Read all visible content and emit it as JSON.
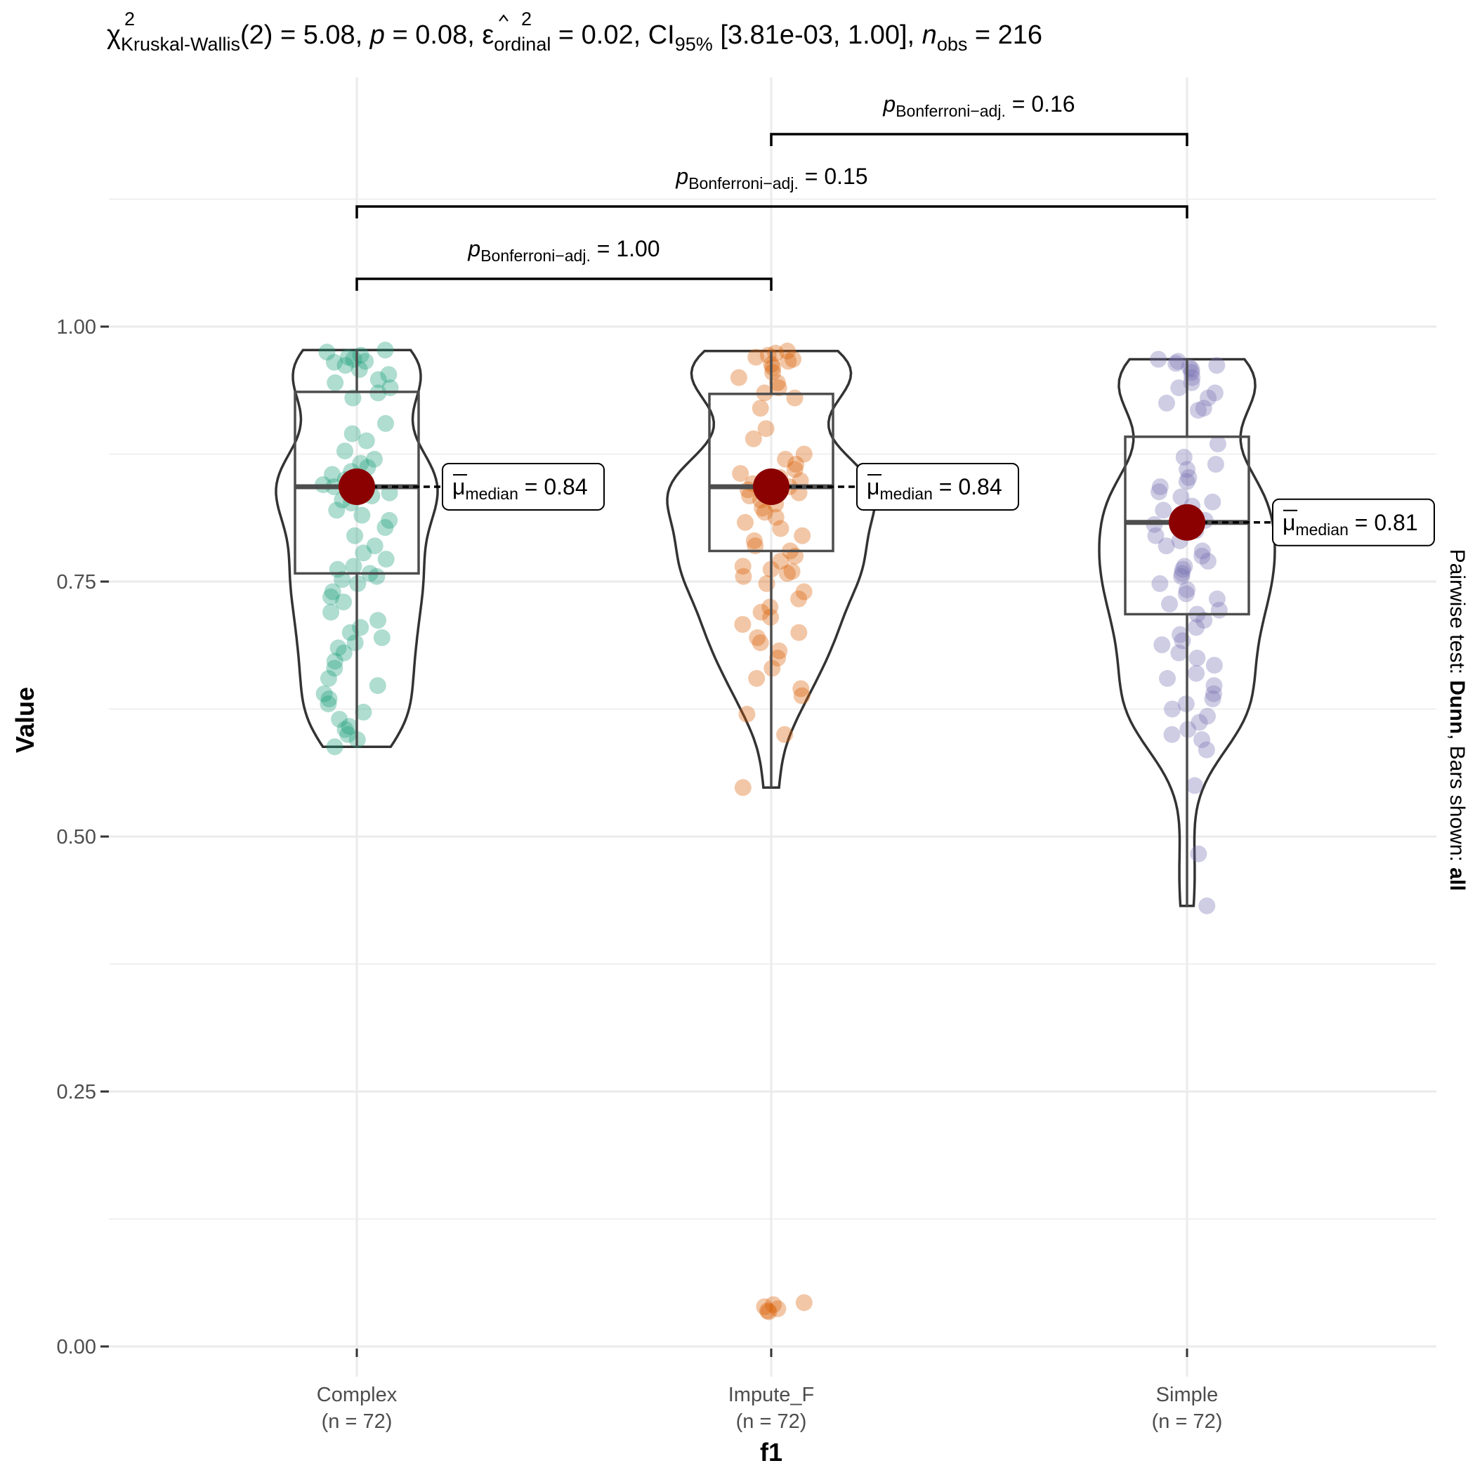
{
  "chart_data": {
    "type": "violin-box-scatter",
    "title": {
      "chi_symbol": "χ",
      "chi_sup": "2",
      "chi_sub": "Kruskal-Wallis",
      "df_text": "(2) = 5.08, ",
      "p_symbol": "p",
      "p_text": " = 0.08, ",
      "eps_symbol": "ε",
      "eps_sup": "2",
      "eps_sub": "ordinal",
      "eps_text": " = 0.02, CI",
      "ci_sub": "95%",
      "ci_text": " [3.81e-03, 1.00], ",
      "n_symbol": "n",
      "n_sub": "obs",
      "n_text": " = 216"
    },
    "xlabel": "f1",
    "ylabel": "Value",
    "ylim": [
      0,
      1.0
    ],
    "yticks": [
      "0.00",
      "0.25",
      "0.50",
      "0.75",
      "1.00"
    ],
    "grid": true,
    "side_note": {
      "prefix": "Pairwise test: ",
      "test": "Dunn",
      "middle": ", Bars shown: ",
      "bars": "all"
    },
    "groups": [
      {
        "name": "Complex",
        "n_label": "(n = 72)",
        "color": "#1b9e77",
        "median": 0.843,
        "median_label": "0.84",
        "q1": 0.758,
        "q3": 0.936,
        "whisker_low": 0.588,
        "whisker_high": 0.977,
        "points": [
          0.977,
          0.975,
          0.972,
          0.97,
          0.968,
          0.966,
          0.965,
          0.962,
          0.958,
          0.953,
          0.948,
          0.945,
          0.94,
          0.935,
          0.93,
          0.905,
          0.895,
          0.888,
          0.878,
          0.87,
          0.866,
          0.862,
          0.858,
          0.855,
          0.85,
          0.848,
          0.845,
          0.843,
          0.84,
          0.837,
          0.834,
          0.83,
          0.827,
          0.82,
          0.815,
          0.81,
          0.803,
          0.795,
          0.785,
          0.778,
          0.772,
          0.765,
          0.762,
          0.758,
          0.755,
          0.752,
          0.748,
          0.74,
          0.735,
          0.73,
          0.72,
          0.712,
          0.705,
          0.7,
          0.695,
          0.69,
          0.685,
          0.68,
          0.672,
          0.665,
          0.655,
          0.648,
          0.64,
          0.635,
          0.63,
          0.622,
          0.615,
          0.608,
          0.605,
          0.6,
          0.595,
          0.588
        ]
      },
      {
        "name": "Impute_F",
        "n_label": "(n = 72)",
        "color": "#d95f02",
        "median": 0.843,
        "median_label": "0.84",
        "q1": 0.78,
        "q3": 0.934,
        "whisker_low": 0.548,
        "whisker_high": 0.976,
        "points": [
          0.976,
          0.974,
          0.972,
          0.97,
          0.968,
          0.966,
          0.963,
          0.96,
          0.955,
          0.95,
          0.945,
          0.94,
          0.935,
          0.93,
          0.92,
          0.9,
          0.89,
          0.875,
          0.87,
          0.865,
          0.86,
          0.856,
          0.852,
          0.849,
          0.846,
          0.843,
          0.84,
          0.837,
          0.834,
          0.83,
          0.826,
          0.822,
          0.818,
          0.813,
          0.808,
          0.802,
          0.795,
          0.79,
          0.785,
          0.78,
          0.775,
          0.77,
          0.765,
          0.762,
          0.76,
          0.758,
          0.755,
          0.748,
          0.74,
          0.733,
          0.725,
          0.72,
          0.715,
          0.708,
          0.7,
          0.695,
          0.69,
          0.682,
          0.675,
          0.665,
          0.655,
          0.645,
          0.638,
          0.62,
          0.6,
          0.548,
          0.043,
          0.041,
          0.039,
          0.037,
          0.035,
          0.034
        ]
      },
      {
        "name": "Simple",
        "n_label": "(n = 72)",
        "color": "#7570b3",
        "median": 0.808,
        "median_label": "0.81",
        "q1": 0.718,
        "q3": 0.892,
        "whisker_low": 0.432,
        "whisker_high": 0.968,
        "points": [
          0.968,
          0.966,
          0.964,
          0.962,
          0.96,
          0.958,
          0.955,
          0.95,
          0.945,
          0.94,
          0.935,
          0.93,
          0.925,
          0.92,
          0.918,
          0.885,
          0.872,
          0.865,
          0.86,
          0.852,
          0.848,
          0.843,
          0.838,
          0.833,
          0.828,
          0.824,
          0.82,
          0.815,
          0.81,
          0.806,
          0.8,
          0.795,
          0.79,
          0.785,
          0.78,
          0.775,
          0.77,
          0.765,
          0.762,
          0.758,
          0.755,
          0.748,
          0.742,
          0.738,
          0.733,
          0.728,
          0.722,
          0.718,
          0.712,
          0.705,
          0.698,
          0.692,
          0.688,
          0.68,
          0.675,
          0.668,
          0.66,
          0.655,
          0.648,
          0.64,
          0.635,
          0.63,
          0.625,
          0.618,
          0.612,
          0.605,
          0.6,
          0.595,
          0.585,
          0.55,
          0.483,
          0.432
        ]
      }
    ],
    "pairwise": [
      {
        "from": "Complex",
        "to": "Impute_F",
        "p_label": "1.00",
        "level": 1
      },
      {
        "from": "Complex",
        "to": "Simple",
        "p_label": "0.15",
        "level": 2
      },
      {
        "from": "Impute_F",
        "to": "Simple",
        "p_label": "0.16",
        "level": 3
      }
    ],
    "pairwise_label": {
      "p_symbol": "p",
      "p_sub": "Bonferroni−adj.",
      "equals": " = "
    },
    "median_label": {
      "mu_symbol": "μ",
      "mu_sub": "median",
      "equals": " = "
    },
    "colors": {
      "median_point": "#8b0000",
      "box_stroke": "#4d4d4d",
      "violin_stroke": "#333333",
      "grid": "#ebebeb"
    }
  }
}
